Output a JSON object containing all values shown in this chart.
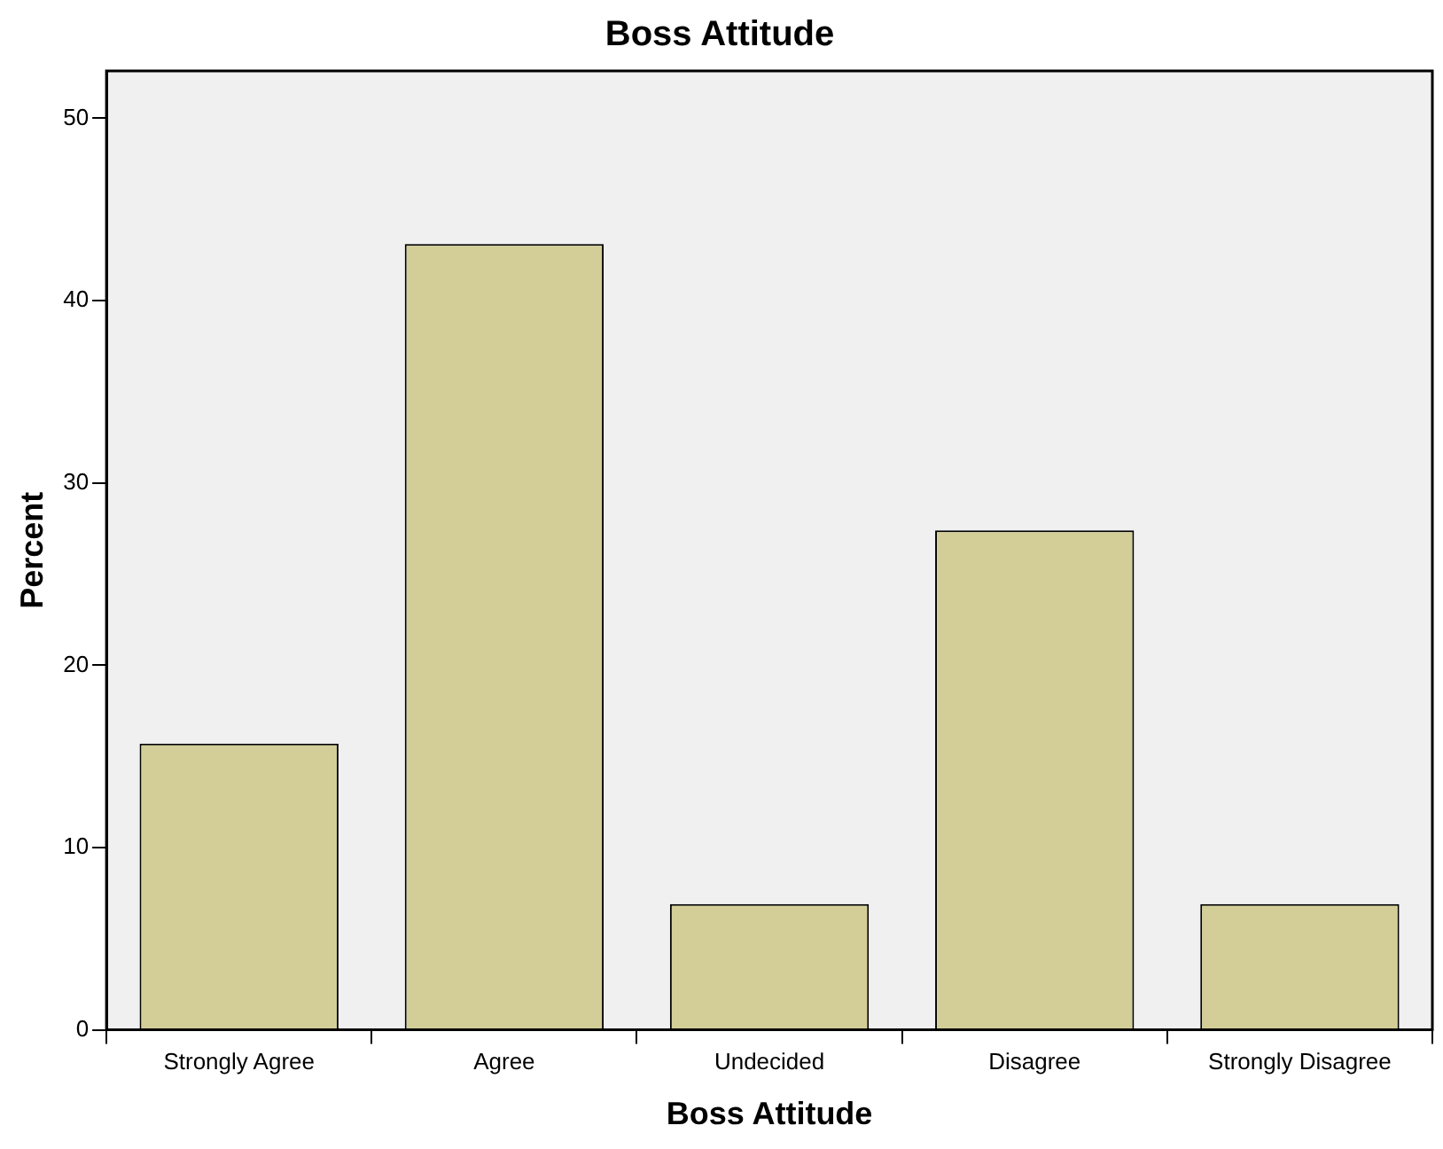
{
  "chart_data": {
    "type": "bar",
    "title": "Boss Attitude",
    "xlabel": "Boss Attitude",
    "ylabel": "Percent",
    "categories": [
      "Strongly Agree",
      "Agree",
      "Undecided",
      "Disagree",
      "Strongly Disagree"
    ],
    "values": [
      15.7,
      43.1,
      6.9,
      27.4,
      6.9
    ],
    "color": "#d3ce97",
    "ylim": [
      0,
      52.6
    ],
    "yticks": [
      0,
      10,
      20,
      30,
      40,
      50
    ],
    "grid": false,
    "legend": false
  }
}
